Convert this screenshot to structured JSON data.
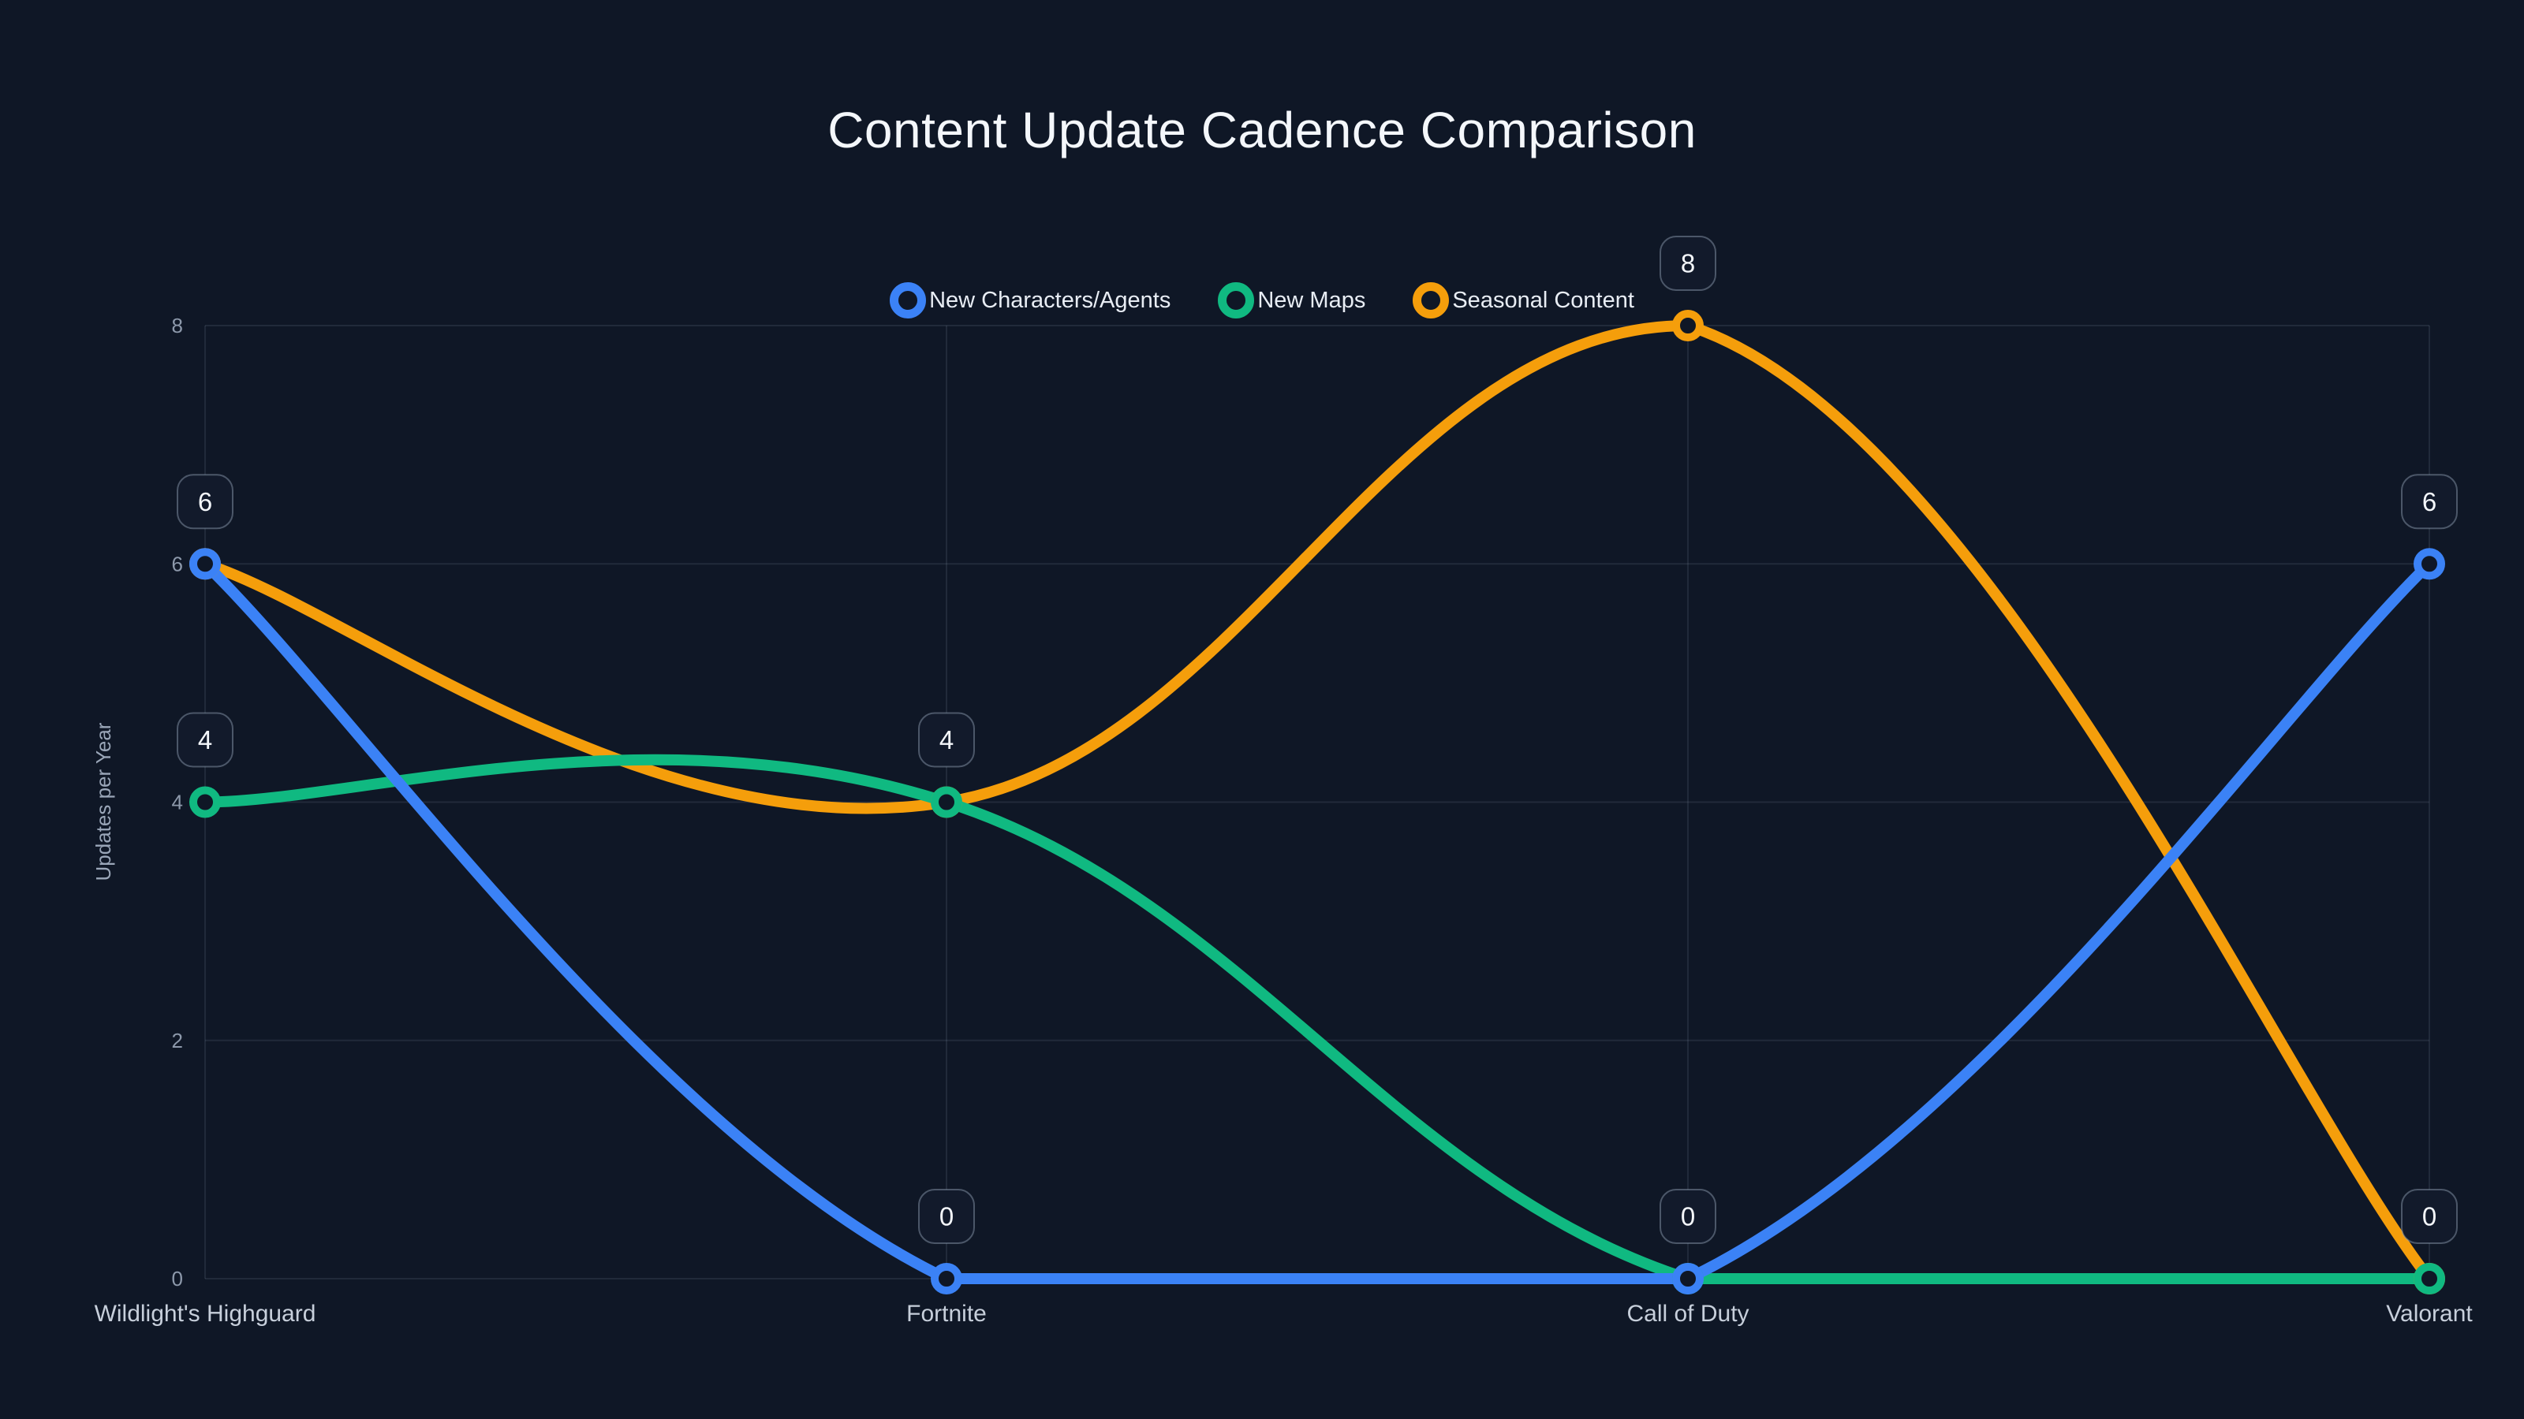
{
  "page": {
    "background": "#0f1726"
  },
  "chart_data": {
    "type": "line",
    "title": "Content Update Cadence Comparison",
    "ylabel": "Updates per Year",
    "xlabel": "",
    "categories": [
      "Wildlight's Highguard",
      "Fortnite",
      "Call of Duty",
      "Valorant"
    ],
    "series": [
      {
        "name": "New Characters/Agents",
        "color": "#3b82f6",
        "values": [
          6,
          0,
          0,
          6
        ]
      },
      {
        "name": "New Maps",
        "color": "#10b981",
        "values": [
          4,
          4,
          0,
          0
        ]
      },
      {
        "name": "Seasonal Content",
        "color": "#f59e0b",
        "values": [
          6,
          4,
          8,
          0
        ]
      }
    ],
    "yticks": [
      0,
      2,
      4,
      6,
      8
    ],
    "ylim": [
      0,
      8
    ],
    "grid": true,
    "curve": "smooth",
    "legend_position": "top-center",
    "point_labels": [
      {
        "category_index": 0,
        "value": 6
      },
      {
        "category_index": 0,
        "value": 4
      },
      {
        "category_index": 1,
        "value": 4
      },
      {
        "category_index": 1,
        "value": 0
      },
      {
        "category_index": 2,
        "value": 8
      },
      {
        "category_index": 2,
        "value": 0
      },
      {
        "category_index": 3,
        "value": 6
      },
      {
        "category_index": 3,
        "value": 0
      }
    ],
    "colors": {
      "background": "#0f1726",
      "grid": "rgba(148,163,184,0.14)",
      "tick_text": "#8d99ab",
      "category_text": "#c7cfdb",
      "title_text": "#f4f7fb",
      "legend_text": "#e8edf4",
      "marker_fill": "#0f1726",
      "badge_fill": "#121a2b",
      "badge_border": "rgba(148,163,184,0.45)",
      "badge_text": "#f4f7fb"
    }
  }
}
